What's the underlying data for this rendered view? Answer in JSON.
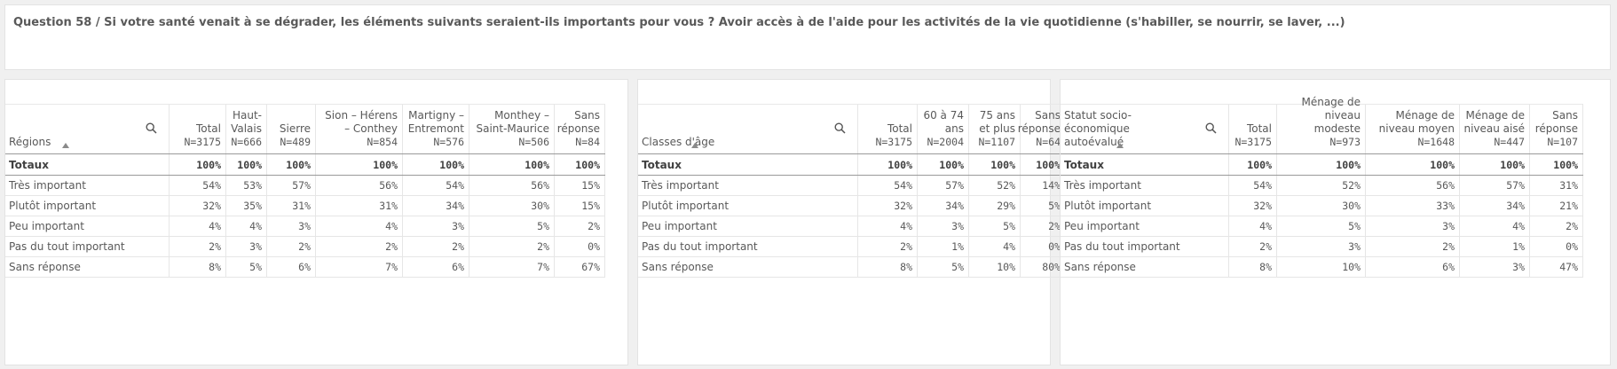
{
  "title": "Question 58 / Si votre santé venait à se dégrader, les éléments suivants seraient-ils importants pour vous ? Avoir accès à de l'aide pour les activités de la vie quotidienne (s'habiller, se nourrir, se laver, ...)",
  "row_labels": [
    "Totaux",
    "Très important",
    "Plutôt important",
    "Peu important",
    "Pas du tout important",
    "Sans réponse"
  ],
  "tables": [
    {
      "dimension": "Régions",
      "columns": [
        {
          "label": "Total",
          "n": "N=3175"
        },
        {
          "label": "Haut-Valais",
          "n": "N=666"
        },
        {
          "label": "Sierre",
          "n": "N=489"
        },
        {
          "label": "Sion – Hérens – Conthey",
          "n": "N=854"
        },
        {
          "label": "Martigny – Entremont",
          "n": "N=576"
        },
        {
          "label": "Monthey – Saint-Maurice",
          "n": "N=506"
        },
        {
          "label": "Sans réponse",
          "n": "N=84"
        }
      ],
      "rows": [
        [
          "100%",
          "100%",
          "100%",
          "100%",
          "100%",
          "100%",
          "100%"
        ],
        [
          "54%",
          "53%",
          "57%",
          "56%",
          "54%",
          "56%",
          "15%"
        ],
        [
          "32%",
          "35%",
          "31%",
          "31%",
          "34%",
          "30%",
          "15%"
        ],
        [
          "4%",
          "4%",
          "3%",
          "4%",
          "3%",
          "5%",
          "2%"
        ],
        [
          "2%",
          "3%",
          "2%",
          "2%",
          "2%",
          "2%",
          "0%"
        ],
        [
          "8%",
          "5%",
          "6%",
          "7%",
          "6%",
          "7%",
          "67%"
        ]
      ]
    },
    {
      "dimension": "Classes d'âge",
      "columns": [
        {
          "label": "Total",
          "n": "N=3175"
        },
        {
          "label": "60 à 74 ans",
          "n": "N=2004"
        },
        {
          "label": "75 ans et plus",
          "n": "N=1107"
        },
        {
          "label": "Sans réponse",
          "n": "N=64"
        }
      ],
      "rows": [
        [
          "100%",
          "100%",
          "100%",
          "100%"
        ],
        [
          "54%",
          "57%",
          "52%",
          "14%"
        ],
        [
          "32%",
          "34%",
          "29%",
          "5%"
        ],
        [
          "4%",
          "3%",
          "5%",
          "2%"
        ],
        [
          "2%",
          "1%",
          "4%",
          "0%"
        ],
        [
          "8%",
          "5%",
          "10%",
          "80%"
        ]
      ]
    },
    {
      "dimension": "Statut socio-économique autoévalué",
      "columns": [
        {
          "label": "Total",
          "n": "N=3175"
        },
        {
          "label": "Ménage de niveau modeste",
          "n": "N=973"
        },
        {
          "label": "Ménage de niveau moyen",
          "n": "N=1648"
        },
        {
          "label": "Ménage de niveau aisé",
          "n": "N=447"
        },
        {
          "label": "Sans réponse",
          "n": "N=107"
        }
      ],
      "rows": [
        [
          "100%",
          "100%",
          "100%",
          "100%",
          "100%"
        ],
        [
          "54%",
          "52%",
          "56%",
          "57%",
          "31%"
        ],
        [
          "32%",
          "30%",
          "33%",
          "34%",
          "21%"
        ],
        [
          "4%",
          "5%",
          "3%",
          "4%",
          "2%"
        ],
        [
          "2%",
          "3%",
          "2%",
          "1%",
          "0%"
        ],
        [
          "8%",
          "10%",
          "6%",
          "3%",
          "47%"
        ]
      ]
    }
  ]
}
